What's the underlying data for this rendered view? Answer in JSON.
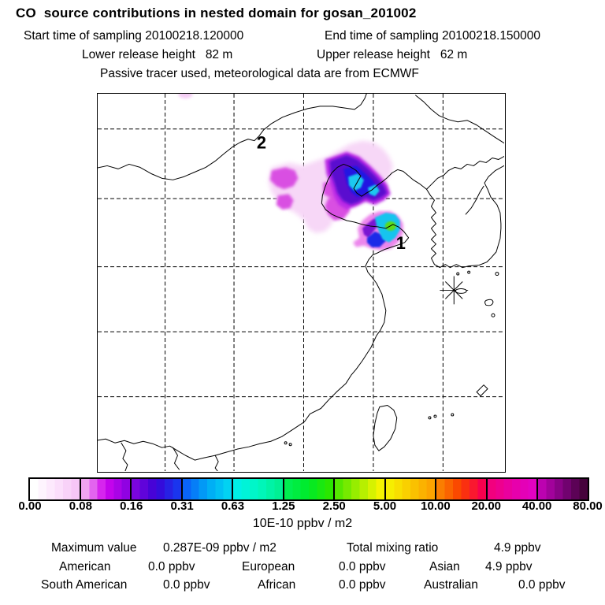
{
  "header": {
    "title": "CO  source contributions in nested domain for gosan_201002",
    "start_time": "Start time of sampling 20100218.120000",
    "end_time": "End time of sampling 20100218.150000",
    "lower_release": "Lower release height   82 m",
    "upper_release": "Upper release height   62 m",
    "tracer_note": "Passive tracer used, meteorological data are from ECMWF"
  },
  "map": {
    "hotspot_labels": [
      {
        "text": "2"
      },
      {
        "text": "1"
      }
    ],
    "station_marker": "asterisk-star"
  },
  "colorbar": {
    "ticks": [
      "0.00",
      "0.08",
      "0.16",
      "0.31",
      "0.63",
      "1.25",
      "2.50",
      "5.00",
      "10.00",
      "20.00",
      "40.00",
      "80.00"
    ],
    "unit_label": "10E-10 ppbv / m2",
    "cells": [
      [
        "#ffffff",
        "#fce4fc",
        "#f6c6f6"
      ],
      [
        "#f0a4f0",
        "#d005ee",
        "#9002e2"
      ],
      [
        "#7a05dd",
        "#3a02d6",
        "#1a35ee"
      ],
      [
        "#0a64f8",
        "#00a6f6",
        "#02d2f2"
      ],
      [
        "#00f0e6",
        "#00f8c2",
        "#00f094"
      ],
      [
        "#00ef50",
        "#00ea28",
        "#2ae600"
      ],
      [
        "#55e800",
        "#a8ee00",
        "#f4f400"
      ],
      [
        "#f6ee00",
        "#fac800",
        "#fca400"
      ],
      [
        "#fa7e00",
        "#fa3c00",
        "#f8004e"
      ],
      [
        "#f2007e",
        "#e800a6",
        "#e202c2"
      ],
      [
        "#bc02b0",
        "#7c027c",
        "#46023c"
      ]
    ]
  },
  "stats": {
    "maximum_label": "Maximum value",
    "maximum_value": "0.287E-09 ppbv / m2",
    "total_label": "Total mixing ratio",
    "total_value": "4.9 ppbv",
    "regions": [
      {
        "name": "American",
        "value": "0.0 ppbv"
      },
      {
        "name": "European",
        "value": "0.0 ppbv"
      },
      {
        "name": "Asian",
        "value": "4.9 ppbv"
      },
      {
        "name": "South American",
        "value": "0.0 ppbv"
      },
      {
        "name": "African",
        "value": "0.0 ppbv"
      },
      {
        "name": "Australian",
        "value": "0.0 ppbv"
      }
    ]
  },
  "chart_data": {
    "type": "heatmap",
    "title": "CO  source contributions in nested domain for gosan_201002",
    "subtitle": [
      "Start time of sampling 20100218.120000",
      "End time of sampling 20100218.150000",
      "Lower release height 82 m",
      "Upper release height 62 m",
      "Passive tracer used, meteorological data are from ECMWF"
    ],
    "colorbar_scale": [
      0.0,
      0.08,
      0.16,
      0.31,
      0.63,
      1.25,
      2.5,
      5.0,
      10.0,
      20.0,
      40.0,
      80.0
    ],
    "colorbar_unit": "10E-10 ppbv / m2",
    "maximum_value": "0.287E-09 ppbv / m2",
    "total_mixing_ratio_ppbv": 4.9,
    "regional_contributions_ppbv": {
      "American": 0.0,
      "European": 0.0,
      "Asian": 4.9,
      "South American": 0.0,
      "African": 0.0,
      "Australian": 0.0
    },
    "hotspots": [
      {
        "label": "2",
        "note": "label in north-west inland area"
      },
      {
        "label": "1",
        "note": "label at strongest plume cell on Shandong coast, peak ~5 units (green core)"
      }
    ],
    "legend_position": "bottom",
    "grid": "dashed lat/lon graticule, 5 vertical x 5 horizontal lines"
  }
}
